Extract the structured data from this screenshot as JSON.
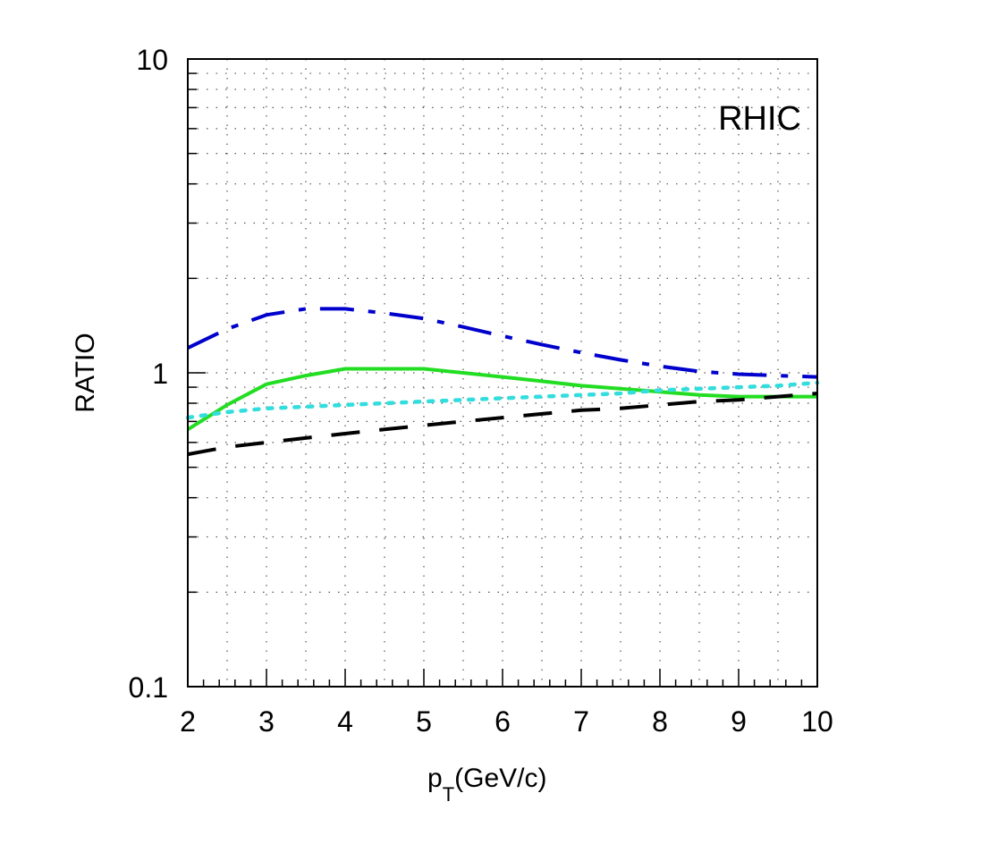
{
  "chart_data": {
    "type": "line",
    "annotation": "RHIC",
    "xlabel": {
      "main": "p",
      "sub": "T",
      "rest": "(GeV/c)"
    },
    "ylabel": "RATIO",
    "xlim": [
      2,
      10
    ],
    "ylim": [
      0.1,
      10
    ],
    "yscale": "log",
    "grid": true,
    "x_ticks": [
      "2",
      "3",
      "4",
      "5",
      "6",
      "7",
      "8",
      "9",
      "10"
    ],
    "y_ticks": [
      "0.1",
      "1",
      "10"
    ],
    "series": [
      {
        "style": "dash-dot",
        "color": "#0000cc",
        "x": [
          2,
          2.5,
          3,
          3.5,
          4,
          4.5,
          5,
          5.5,
          6,
          6.5,
          7,
          7.5,
          8,
          8.5,
          9,
          9.5,
          10
        ],
        "y": [
          1.2,
          1.38,
          1.53,
          1.6,
          1.6,
          1.55,
          1.49,
          1.4,
          1.31,
          1.23,
          1.16,
          1.1,
          1.05,
          1.01,
          0.99,
          0.98,
          0.97
        ]
      },
      {
        "style": "solid",
        "color": "#22dd22",
        "x": [
          2,
          2.5,
          3,
          3.5,
          4,
          4.5,
          5,
          5.5,
          6,
          6.5,
          7,
          7.5,
          8,
          8.5,
          9,
          9.5,
          10
        ],
        "y": [
          0.66,
          0.79,
          0.92,
          0.98,
          1.03,
          1.03,
          1.03,
          1.0,
          0.97,
          0.94,
          0.91,
          0.89,
          0.87,
          0.85,
          0.84,
          0.84,
          0.84
        ]
      },
      {
        "style": "dotted",
        "color": "#33dddd",
        "x": [
          2,
          2.5,
          3,
          3.5,
          4,
          4.5,
          5,
          5.5,
          6,
          6.5,
          7,
          7.5,
          8,
          8.5,
          9,
          9.5,
          10
        ],
        "y": [
          0.72,
          0.75,
          0.77,
          0.78,
          0.79,
          0.8,
          0.81,
          0.82,
          0.83,
          0.84,
          0.85,
          0.86,
          0.88,
          0.89,
          0.9,
          0.91,
          0.93
        ]
      },
      {
        "style": "dashed",
        "color": "#000000",
        "x": [
          2,
          2.5,
          3,
          3.5,
          4,
          4.5,
          5,
          5.5,
          6,
          6.5,
          7,
          7.5,
          8,
          8.5,
          9,
          9.5,
          10
        ],
        "y": [
          0.55,
          0.58,
          0.6,
          0.62,
          0.64,
          0.66,
          0.68,
          0.7,
          0.72,
          0.74,
          0.76,
          0.77,
          0.79,
          0.81,
          0.82,
          0.84,
          0.86
        ]
      }
    ]
  }
}
